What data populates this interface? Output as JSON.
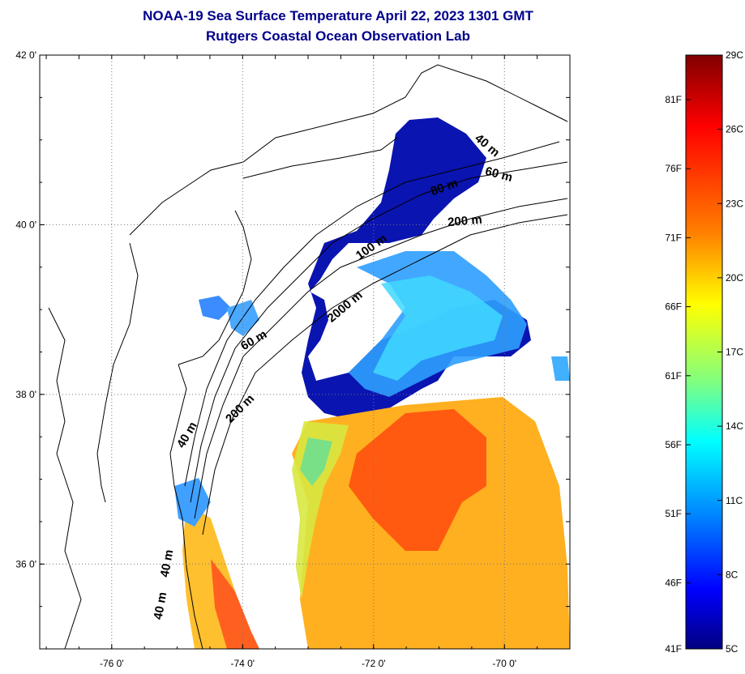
{
  "title": "NOAA-19 Sea Surface Temperature April 22, 2023 1301 GMT",
  "subtitle": "Rutgers Coastal Ocean Observation Lab",
  "map": {
    "lon_range": [
      -77.1,
      -69.0
    ],
    "lat_range": [
      35.0,
      42.0
    ],
    "lon_ticks": [
      {
        "value": -76,
        "label": "-76 0'"
      },
      {
        "value": -74,
        "label": "-74 0'"
      },
      {
        "value": -72,
        "label": "-72 0'"
      },
      {
        "value": -70,
        "label": "-70 0'"
      }
    ],
    "lat_ticks": [
      {
        "value": 42,
        "label": "42 0'"
      },
      {
        "value": 40,
        "label": "40 0'"
      },
      {
        "value": 38,
        "label": "38 0'"
      },
      {
        "value": 36,
        "label": "36 0'"
      }
    ],
    "grid": "dotted",
    "isobath_labels": [
      {
        "text": "40 m",
        "lon": -70.3,
        "lat": 40.9,
        "rotate": 40
      },
      {
        "text": "60 m",
        "lon": -70.1,
        "lat": 40.55,
        "rotate": 15
      },
      {
        "text": "80 m",
        "lon": -70.9,
        "lat": 40.4,
        "rotate": -20
      },
      {
        "text": "200 m",
        "lon": -70.6,
        "lat": 40.0,
        "rotate": -5
      },
      {
        "text": "100 m",
        "lon": -72.0,
        "lat": 39.7,
        "rotate": -35
      },
      {
        "text": "2000 m",
        "lon": -72.4,
        "lat": 39.0,
        "rotate": -40
      },
      {
        "text": "60 m",
        "lon": -73.8,
        "lat": 38.6,
        "rotate": -30
      },
      {
        "text": "200 m",
        "lon": -74.0,
        "lat": 37.8,
        "rotate": -45
      },
      {
        "text": "40 m",
        "lon": -74.8,
        "lat": 37.5,
        "rotate": -60
      },
      {
        "text": "40 m",
        "lon": -75.2,
        "lat": 35.5,
        "rotate": -80
      },
      {
        "text": "40 m",
        "lon": -75.1,
        "lat": 36.0,
        "rotate": -80
      }
    ]
  },
  "colorbar": {
    "celsius_labels": [
      "29C",
      "26C",
      "23C",
      "20C",
      "17C",
      "14C",
      "11C",
      "8C",
      "5C"
    ],
    "fahrenheit_labels": [
      "81F",
      "76F",
      "71F",
      "66F",
      "61F",
      "56F",
      "51F",
      "46F",
      "41F"
    ],
    "colors": [
      "#800000",
      "#ff0000",
      "#ff8000",
      "#ffff00",
      "#80ff80",
      "#00ffff",
      "#0080ff",
      "#0000ff",
      "#000080"
    ]
  }
}
